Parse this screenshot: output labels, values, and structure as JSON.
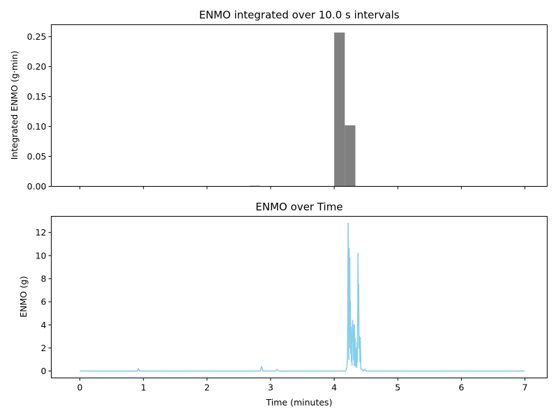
{
  "chart_data": [
    {
      "type": "bar",
      "title": "ENMO integrated over 10.0 s intervals",
      "xlabel": "",
      "ylabel": "Integrated ENMO (g·min)",
      "xlim": [
        -0.45,
        7.35
      ],
      "ylim": [
        0,
        0.27
      ],
      "xticks": [
        0,
        1,
        2,
        3,
        4,
        5,
        6,
        7
      ],
      "xtick_labels_visible": false,
      "yticks": [
        0.0,
        0.05,
        0.1,
        0.15,
        0.2,
        0.25
      ],
      "ytick_labels": [
        "0.00",
        "0.05",
        "0.10",
        "0.15",
        "0.20",
        "0.25"
      ],
      "bar_color": "#808080",
      "bin_width_min": 0.1667,
      "bins": [
        {
          "x": 2.75,
          "value": 0.001
        },
        {
          "x": 2.9167,
          "value": 0.0005
        },
        {
          "x": 3.0833,
          "value": 0.0003
        },
        {
          "x": 4.0833,
          "value": 0.257
        },
        {
          "x": 4.25,
          "value": 0.102
        }
      ]
    },
    {
      "type": "line",
      "title": "ENMO over Time",
      "xlabel": "Time (minutes)",
      "ylabel": "ENMO (g)",
      "xlim": [
        -0.45,
        7.35
      ],
      "ylim": [
        -0.6,
        13.4
      ],
      "xticks": [
        0,
        1,
        2,
        3,
        4,
        5,
        6,
        7
      ],
      "xtick_labels": [
        "0",
        "1",
        "2",
        "3",
        "4",
        "5",
        "6",
        "7"
      ],
      "yticks": [
        0,
        2,
        4,
        6,
        8,
        10,
        12
      ],
      "ytick_labels": [
        "0",
        "2",
        "4",
        "6",
        "8",
        "10",
        "12"
      ],
      "line_color": "#87ceeb",
      "x": [
        0.0,
        0.9,
        0.92,
        0.94,
        2.84,
        2.86,
        2.88,
        3.08,
        3.1,
        3.12,
        4.18,
        4.2,
        4.21,
        4.215,
        4.22,
        4.225,
        4.23,
        4.235,
        4.24,
        4.245,
        4.25,
        4.255,
        4.26,
        4.265,
        4.27,
        4.275,
        4.28,
        4.285,
        4.29,
        4.295,
        4.3,
        4.305,
        4.31,
        4.315,
        4.32,
        4.325,
        4.33,
        4.335,
        4.34,
        4.345,
        4.35,
        4.355,
        4.36,
        4.365,
        4.37,
        4.375,
        4.38,
        4.385,
        4.39,
        4.395,
        4.4,
        4.405,
        4.41,
        4.42,
        4.44,
        4.46,
        4.48,
        4.5,
        5.0,
        7.0
      ],
      "y": [
        0.0,
        0.0,
        0.2,
        0.0,
        0.0,
        0.4,
        0.0,
        0.0,
        0.15,
        0.0,
        0.0,
        0.3,
        1.5,
        6.8,
        12.8,
        7.5,
        1.0,
        10.6,
        4.0,
        9.8,
        2.0,
        6.0,
        1.5,
        3.8,
        0.8,
        2.5,
        0.5,
        3.5,
        4.4,
        2.5,
        4.0,
        1.0,
        3.2,
        0.5,
        4.0,
        1.2,
        2.8,
        0.4,
        2.0,
        0.6,
        1.5,
        0.3,
        2.5,
        0.8,
        5.0,
        10.2,
        4.0,
        7.5,
        2.0,
        3.0,
        2.5,
        0.8,
        2.9,
        0.2,
        0.1,
        0.0,
        0.15,
        0.0,
        0.0,
        0.0
      ]
    }
  ]
}
